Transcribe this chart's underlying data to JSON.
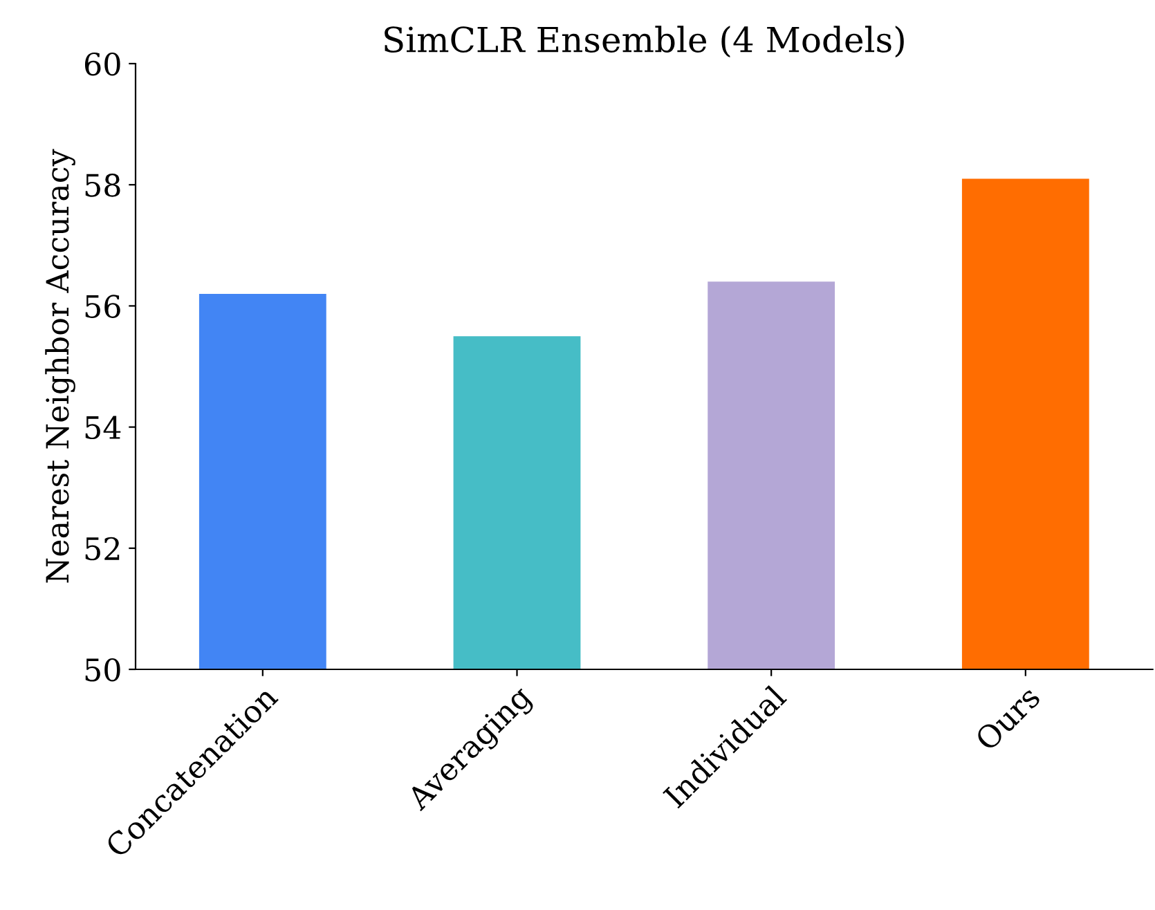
{
  "chart_data": {
    "type": "bar",
    "title": "SimCLR Ensemble (4 Models)",
    "ylabel": "Nearest Neighbor Accuracy",
    "categories": [
      "Concatenation",
      "Averaging",
      "Individual",
      "Ours"
    ],
    "values": [
      56.2,
      55.5,
      56.4,
      58.1
    ],
    "colors": [
      "#4285f4",
      "#46bdc6",
      "#b4a7d6",
      "#ff6d01"
    ],
    "ylim": [
      50,
      60
    ],
    "yticks": [
      50,
      52,
      54,
      56,
      58,
      60
    ],
    "grid": false
  }
}
